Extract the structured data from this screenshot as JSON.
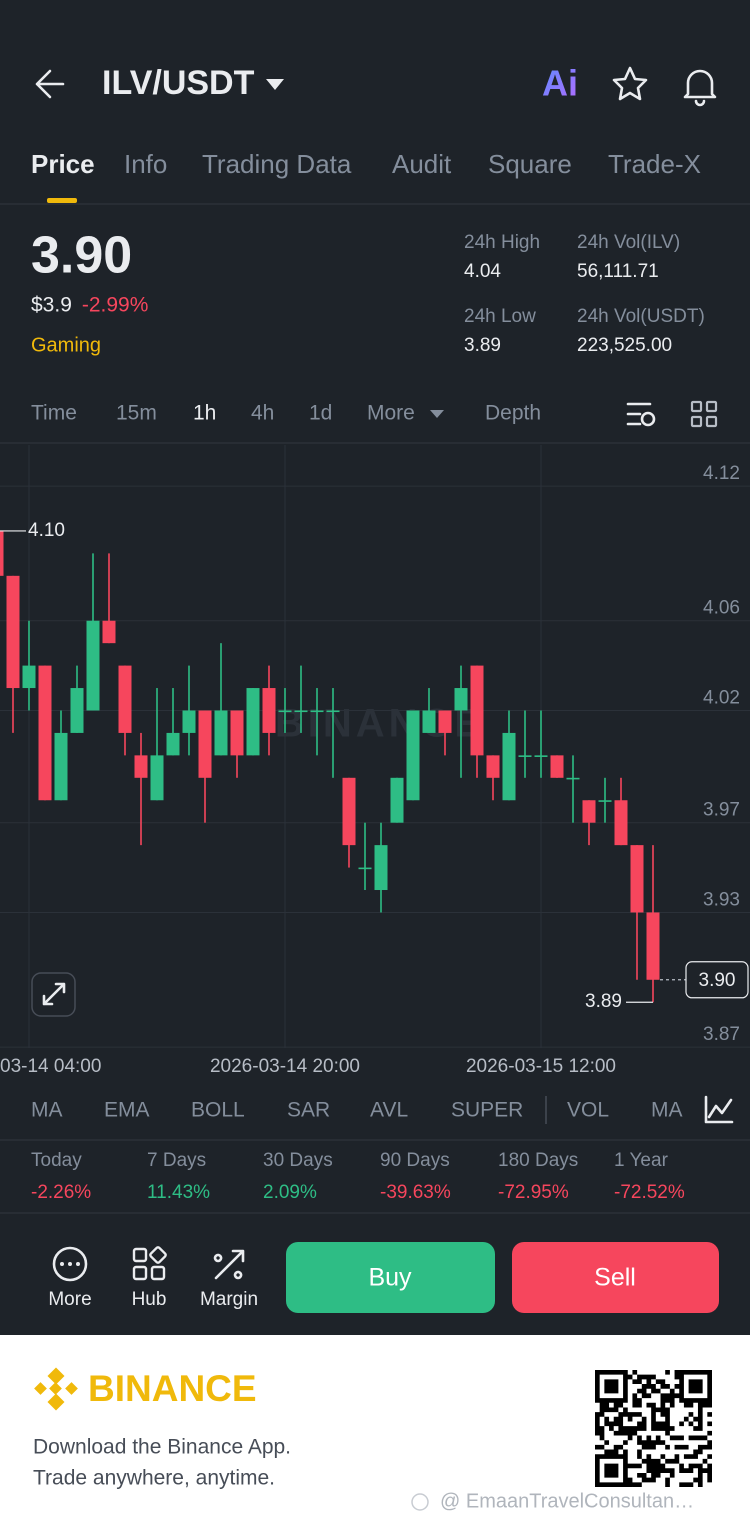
{
  "header": {
    "pair": "ILV/USDT",
    "ai_badge": "Ai"
  },
  "tabs": [
    "Price",
    "Info",
    "Trading Data",
    "Audit",
    "Square",
    "Trade-X"
  ],
  "ticker": {
    "price": "3.90",
    "usd_price": "$3.9",
    "change": "-2.99%",
    "tag": "Gaming"
  },
  "stats": [
    {
      "label": "24h High",
      "value": "4.04"
    },
    {
      "label": "24h Vol(ILV)",
      "value": "56,111.71"
    },
    {
      "label": "24h Low",
      "value": "3.89"
    },
    {
      "label": "24h Vol(USDT)",
      "value": "223,525.00"
    }
  ],
  "intervals": [
    "Time",
    "15m",
    "1h",
    "4h",
    "1d",
    "More",
    "Depth"
  ],
  "chart_data": {
    "type": "candlestick",
    "watermark": "BINANCE",
    "categories": [
      null,
      null,
      null,
      null,
      null,
      null,
      null,
      null,
      null,
      null,
      null,
      null,
      null,
      null,
      null,
      null,
      null,
      null,
      null,
      null,
      null,
      null,
      null,
      null,
      null,
      null,
      null,
      null,
      null,
      null,
      null,
      null,
      null,
      null,
      null,
      null,
      null,
      null,
      null,
      null,
      null,
      null
    ],
    "open": [
      4.1,
      4.08,
      4.03,
      4.04,
      3.98,
      4.01,
      4.02,
      4.06,
      4.04,
      4.0,
      3.98,
      4.0,
      4.01,
      4.02,
      4.0,
      4.02,
      4.0,
      4.03,
      4.02,
      4.02,
      4.02,
      4.02,
      3.99,
      3.95,
      3.94,
      3.97,
      3.98,
      4.01,
      4.02,
      4.02,
      4.04,
      4.0,
      3.98,
      4.0,
      4.0,
      4.0,
      3.99,
      3.98,
      3.98,
      3.98,
      3.96,
      3.93
    ],
    "high": [
      4.1,
      4.08,
      4.06,
      4.04,
      4.02,
      4.04,
      4.09,
      4.09,
      4.04,
      4.01,
      4.03,
      4.03,
      4.04,
      4.02,
      4.05,
      4.02,
      4.03,
      4.04,
      4.03,
      4.04,
      4.03,
      4.03,
      3.99,
      3.97,
      3.97,
      3.99,
      4.02,
      4.03,
      4.02,
      4.04,
      4.04,
      4.0,
      4.02,
      4.02,
      4.02,
      4.0,
      4.0,
      3.98,
      3.99,
      3.99,
      3.96,
      3.96
    ],
    "low": [
      4.08,
      4.01,
      4.02,
      3.98,
      3.98,
      4.01,
      4.02,
      4.05,
      4.0,
      3.96,
      3.98,
      4.0,
      4.0,
      3.97,
      4.0,
      3.99,
      4.0,
      4.0,
      4.01,
      4.01,
      4.0,
      3.99,
      3.95,
      3.94,
      3.93,
      3.97,
      3.98,
      4.01,
      4.0,
      3.99,
      3.99,
      3.98,
      3.98,
      3.99,
      3.99,
      3.99,
      3.97,
      3.96,
      3.97,
      3.96,
      3.9,
      3.89
    ],
    "close": [
      4.08,
      4.03,
      4.04,
      3.98,
      4.01,
      4.03,
      4.06,
      4.05,
      4.01,
      3.99,
      4.0,
      4.01,
      4.02,
      3.99,
      4.02,
      4.0,
      4.03,
      4.01,
      4.02,
      4.02,
      4.02,
      4.02,
      3.96,
      3.95,
      3.96,
      3.99,
      4.02,
      4.02,
      4.01,
      4.03,
      4.0,
      3.99,
      4.01,
      4.0,
      4.0,
      3.99,
      3.99,
      3.97,
      3.98,
      3.96,
      3.93,
      3.9
    ],
    "up_color": "#2ebd85",
    "down_color": "#f6465d",
    "xlim": [
      0.1875,
      47.0625
    ],
    "xticks": [
      {
        "value": 2,
        "label": "03-14 04:00"
      },
      {
        "value": 18,
        "label": "2026-03-14 20:00"
      },
      {
        "value": 34,
        "label": "2026-03-15 12:00"
      }
    ],
    "ylim": [
      3.8696,
      4.1383
    ],
    "yticks": [
      4.12,
      4.06,
      4.02,
      3.97,
      3.93,
      3.87
    ],
    "grid": true,
    "high_marker": {
      "value": 4.1,
      "label": "4.10"
    },
    "low_marker": 3.89,
    "last_price": {
      "value": 3.9,
      "label": "3.90"
    }
  },
  "indicators": [
    "MA",
    "EMA",
    "BOLL",
    "SAR",
    "AVL",
    "SUPER",
    "VOL",
    "MA"
  ],
  "performance": [
    {
      "period": "Today",
      "change": "-2.26%"
    },
    {
      "period": "7 Days",
      "change": "11.43%"
    },
    {
      "period": "30 Days",
      "change": "2.09%"
    },
    {
      "period": "90 Days",
      "change": "-39.63%"
    },
    {
      "period": "180 Days",
      "change": "-72.95%"
    },
    {
      "period": "1 Year",
      "change": "-72.52%"
    }
  ],
  "actions": [
    "More",
    "Hub",
    "Margin"
  ],
  "buttons": {
    "buy": "Buy",
    "sell": "Sell"
  },
  "footer": {
    "brand": "BINANCE",
    "line1": "Download the Binance App.",
    "line2": "Trade anywhere, anytime.",
    "credit": "@ EmaanTravelConsultan…"
  }
}
